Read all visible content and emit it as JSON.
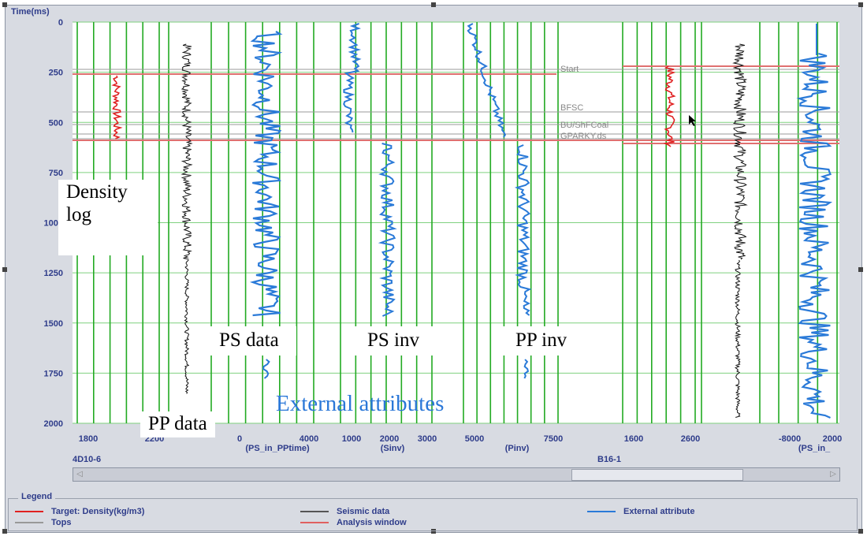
{
  "panel": {
    "y_axis_label": "Time(ms)",
    "y_ticks": [
      "0",
      "250",
      "500",
      "750",
      "1000",
      "1250",
      "1500",
      "1750",
      "2000"
    ],
    "well_labels": [
      "4D10-6",
      "B16-1"
    ],
    "tops": [
      "Start",
      "BFSC",
      "BU/ShFCoal",
      "GPARKY.ds"
    ]
  },
  "tracks": [
    {
      "ticks": [
        "1800",
        "2200"
      ],
      "name": ""
    },
    {
      "ticks": [
        "",
        ""
      ],
      "name": ""
    },
    {
      "ticks": [
        "0",
        "4000"
      ],
      "name": "(PS_in_PPtime)"
    },
    {
      "ticks": [
        "1000",
        "2000",
        "3000"
      ],
      "name": "(Sinv)"
    },
    {
      "ticks": [
        "5000",
        "7500"
      ],
      "name": "(Pinv)"
    },
    {
      "ticks": [
        "1600",
        "2600"
      ],
      "name": ""
    },
    {
      "ticks": [
        "",
        ""
      ],
      "name": ""
    },
    {
      "ticks": [
        "-8000",
        "2000"
      ],
      "name": "(PS_in_"
    }
  ],
  "annotations": {
    "density_log": "Density log",
    "pp_data": "PP data",
    "ps_data": "PS data",
    "ps_inv": "PS inv",
    "pp_inv": "PP inv",
    "external_attributes": "External attributes"
  },
  "scrollbar": {
    "left_arrow": "◁",
    "right_arrow": "▷"
  },
  "legend": {
    "title": "Legend",
    "items": [
      {
        "label": "Target: Density(kg/m3)",
        "color": "#e02020"
      },
      {
        "label": "Tops",
        "color": "#999999"
      },
      {
        "label": "Seismic data",
        "color": "#555555"
      },
      {
        "label": "Analysis window",
        "color": "#e06060"
      },
      {
        "label": "External attribute",
        "color": "#2a7ad8"
      }
    ]
  },
  "colors": {
    "grid": "#22aa22",
    "tops": "#999999",
    "analysis_window": "#e07070",
    "target": "#e02020",
    "seismic": "#111111",
    "attribute": "#2a7ad8"
  }
}
